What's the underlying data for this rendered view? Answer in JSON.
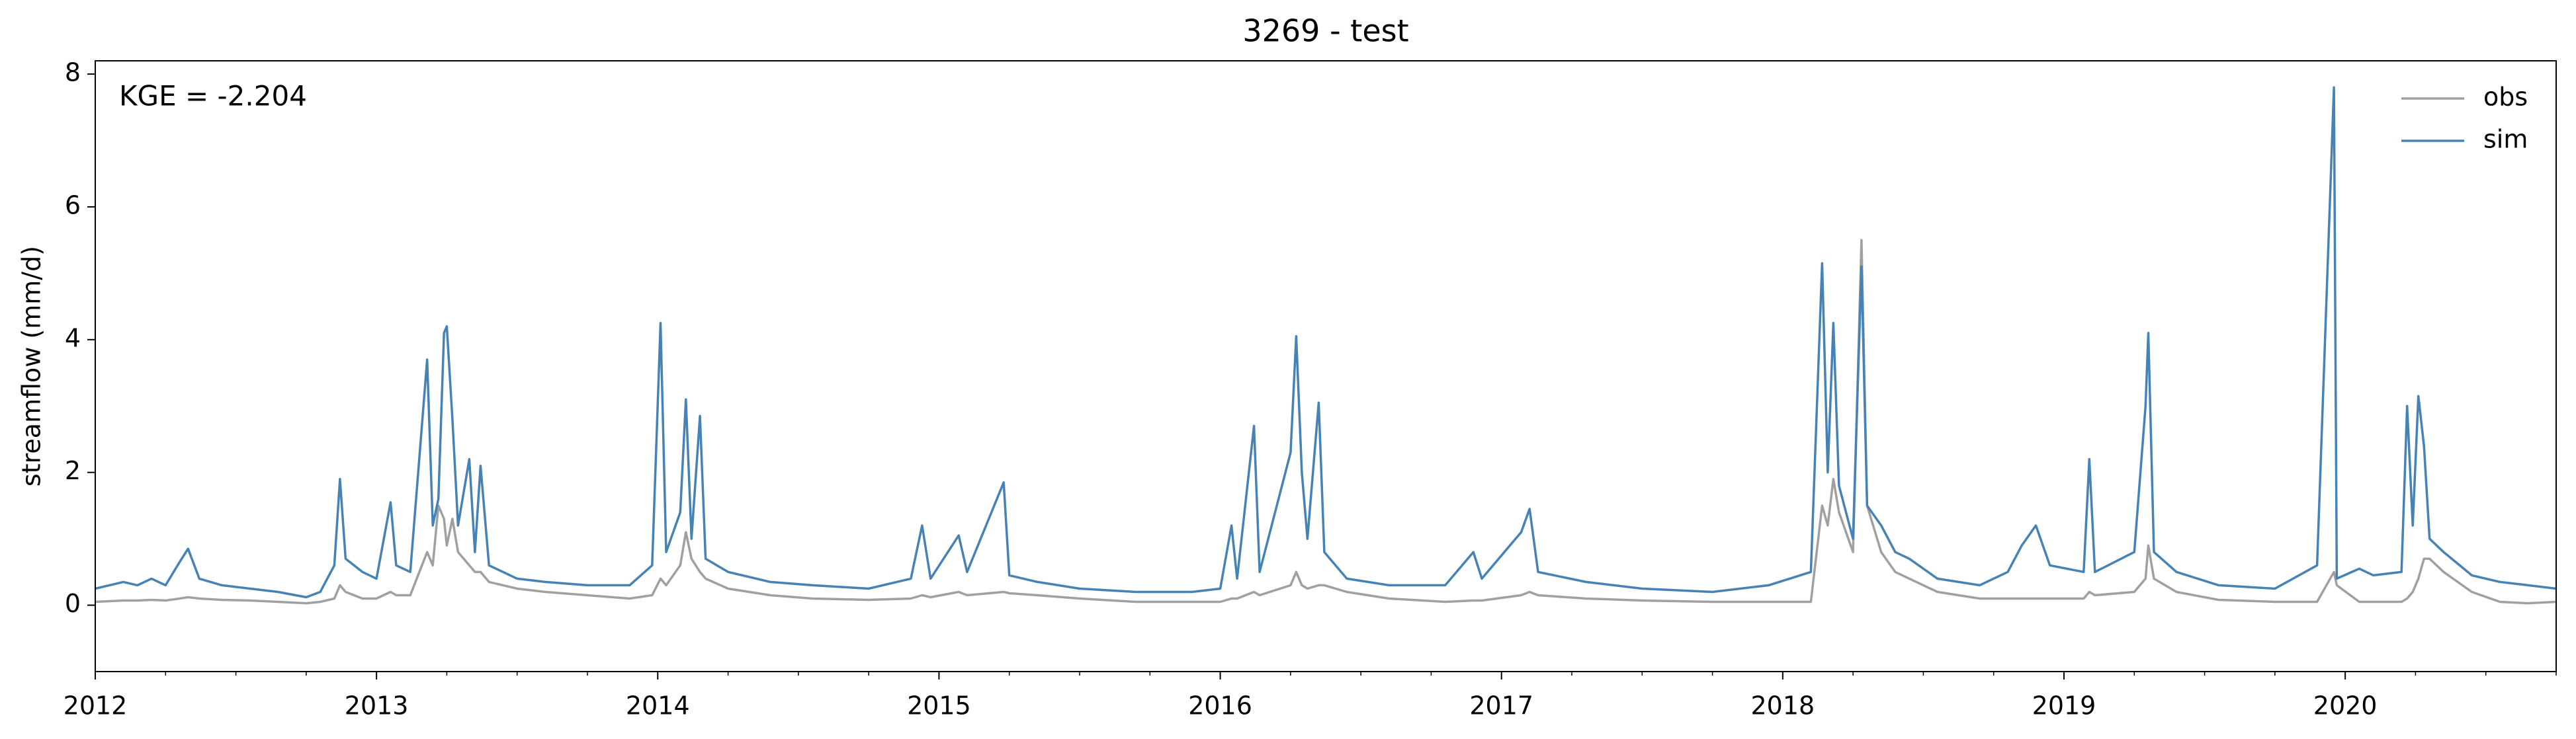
{
  "chart_data": {
    "type": "line",
    "title": "3269 - test",
    "ylabel": "streamflow (mm/d)",
    "annotation": "KGE = -2.204",
    "legend": "upper right",
    "grid": false,
    "xlim": [
      2012,
      2020.75
    ],
    "xticks": [
      2012,
      2013,
      2014,
      2015,
      2016,
      2017,
      2018,
      2019,
      2020
    ],
    "ylim": [
      -1,
      8.2
    ],
    "yticks": [
      0,
      2,
      4,
      6,
      8
    ],
    "x": [
      2012.0,
      2012.05,
      2012.1,
      2012.15,
      2012.2,
      2012.25,
      2012.3,
      2012.33,
      2012.37,
      2012.45,
      2012.55,
      2012.65,
      2012.75,
      2012.8,
      2012.85,
      2012.87,
      2012.89,
      2012.95,
      2013.0,
      2013.05,
      2013.07,
      2013.12,
      2013.18,
      2013.2,
      2013.22,
      2013.24,
      2013.25,
      2013.27,
      2013.29,
      2013.33,
      2013.35,
      2013.37,
      2013.4,
      2013.5,
      2013.6,
      2013.75,
      2013.9,
      2013.98,
      2014.01,
      2014.03,
      2014.08,
      2014.1,
      2014.12,
      2014.15,
      2014.17,
      2014.25,
      2014.4,
      2014.55,
      2014.75,
      2014.9,
      2014.94,
      2014.97,
      2015.07,
      2015.1,
      2015.23,
      2015.25,
      2015.35,
      2015.5,
      2015.7,
      2015.9,
      2016.0,
      2016.04,
      2016.06,
      2016.12,
      2016.14,
      2016.25,
      2016.27,
      2016.29,
      2016.31,
      2016.35,
      2016.37,
      2016.45,
      2016.6,
      2016.8,
      2016.9,
      2016.93,
      2017.07,
      2017.1,
      2017.13,
      2017.3,
      2017.5,
      2017.75,
      2017.95,
      2018.1,
      2018.14,
      2018.16,
      2018.18,
      2018.2,
      2018.25,
      2018.28,
      2018.3,
      2018.35,
      2018.4,
      2018.45,
      2018.55,
      2018.7,
      2018.8,
      2018.85,
      2018.9,
      2018.95,
      2019.07,
      2019.09,
      2019.11,
      2019.25,
      2019.29,
      2019.3,
      2019.32,
      2019.4,
      2019.55,
      2019.75,
      2019.9,
      2019.96,
      2019.97,
      2020.05,
      2020.1,
      2020.2,
      2020.22,
      2020.24,
      2020.26,
      2020.28,
      2020.3,
      2020.35,
      2020.45,
      2020.55,
      2020.65,
      2020.75
    ],
    "series": [
      {
        "name": "obs",
        "color": "#a0a0a0",
        "values": [
          0.05,
          0.06,
          0.07,
          0.07,
          0.08,
          0.07,
          0.1,
          0.12,
          0.1,
          0.08,
          0.07,
          0.05,
          0.03,
          0.05,
          0.1,
          0.3,
          0.2,
          0.1,
          0.1,
          0.2,
          0.15,
          0.15,
          0.8,
          0.6,
          1.5,
          1.3,
          0.9,
          1.3,
          0.8,
          0.6,
          0.5,
          0.5,
          0.35,
          0.25,
          0.2,
          0.15,
          0.1,
          0.15,
          0.4,
          0.3,
          0.6,
          1.1,
          0.7,
          0.5,
          0.4,
          0.25,
          0.15,
          0.1,
          0.08,
          0.1,
          0.15,
          0.12,
          0.2,
          0.15,
          0.2,
          0.18,
          0.15,
          0.1,
          0.05,
          0.05,
          0.05,
          0.1,
          0.1,
          0.2,
          0.15,
          0.3,
          0.5,
          0.3,
          0.25,
          0.3,
          0.3,
          0.2,
          0.1,
          0.05,
          0.07,
          0.07,
          0.15,
          0.2,
          0.15,
          0.1,
          0.07,
          0.05,
          0.05,
          0.05,
          1.5,
          1.2,
          1.9,
          1.4,
          0.8,
          5.5,
          1.5,
          0.8,
          0.5,
          0.4,
          0.2,
          0.1,
          0.1,
          0.1,
          0.1,
          0.1,
          0.1,
          0.2,
          0.15,
          0.2,
          0.4,
          0.9,
          0.4,
          0.2,
          0.08,
          0.05,
          0.05,
          0.5,
          0.3,
          0.05,
          0.05,
          0.05,
          0.1,
          0.2,
          0.4,
          0.7,
          0.7,
          0.5,
          0.2,
          0.05,
          0.03,
          0.05
        ]
      },
      {
        "name": "sim",
        "color": "#4682b4",
        "values": [
          0.25,
          0.3,
          0.35,
          0.3,
          0.4,
          0.3,
          0.65,
          0.85,
          0.4,
          0.3,
          0.25,
          0.2,
          0.12,
          0.2,
          0.6,
          1.9,
          0.7,
          0.5,
          0.4,
          1.55,
          0.6,
          0.5,
          3.7,
          1.2,
          1.6,
          4.1,
          4.2,
          2.8,
          1.2,
          2.2,
          0.8,
          2.1,
          0.6,
          0.4,
          0.35,
          0.3,
          0.3,
          0.6,
          4.25,
          0.8,
          1.4,
          3.1,
          1.0,
          2.85,
          0.7,
          0.5,
          0.35,
          0.3,
          0.25,
          0.4,
          1.2,
          0.4,
          1.05,
          0.5,
          1.85,
          0.45,
          0.35,
          0.25,
          0.2,
          0.2,
          0.25,
          1.2,
          0.4,
          2.7,
          0.5,
          2.3,
          4.05,
          2.0,
          1.0,
          3.05,
          0.8,
          0.4,
          0.3,
          0.3,
          0.8,
          0.4,
          1.1,
          1.45,
          0.5,
          0.35,
          0.25,
          0.2,
          0.3,
          0.5,
          5.15,
          2.0,
          4.25,
          1.8,
          1.0,
          5.1,
          1.5,
          1.2,
          0.8,
          0.7,
          0.4,
          0.3,
          0.5,
          0.9,
          1.2,
          0.6,
          0.5,
          2.2,
          0.5,
          0.8,
          3.0,
          4.1,
          0.8,
          0.5,
          0.3,
          0.25,
          0.6,
          7.8,
          0.4,
          0.55,
          0.45,
          0.5,
          3.0,
          1.2,
          3.15,
          2.4,
          1.0,
          0.8,
          0.45,
          0.35,
          0.3,
          0.25
        ]
      }
    ]
  }
}
